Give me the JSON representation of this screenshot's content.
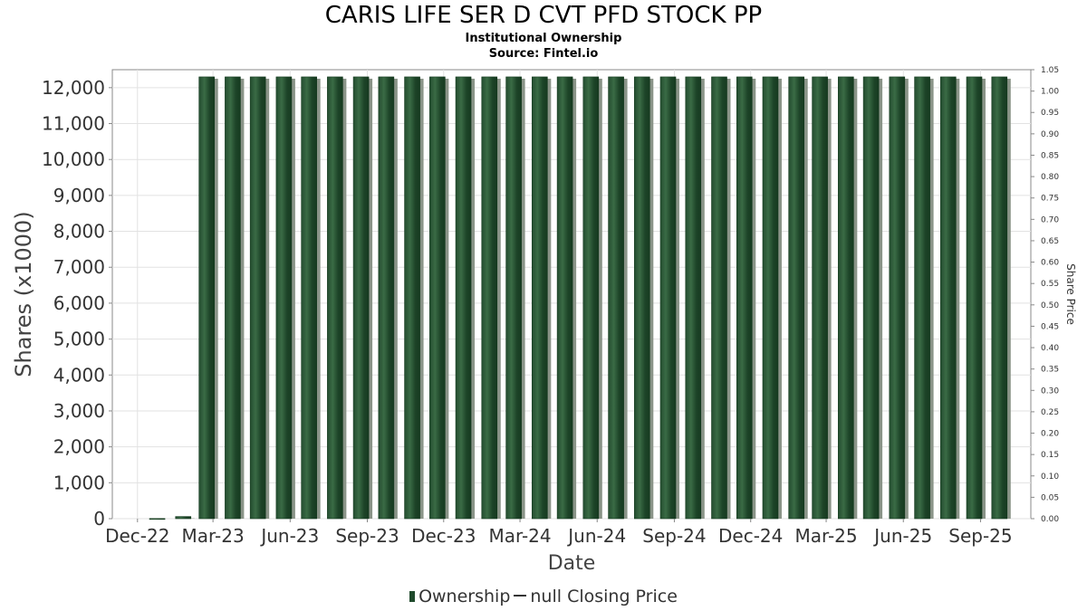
{
  "chart_data": {
    "type": "bar",
    "title": "CARIS LIFE SER D CVT PFD STOCK PP",
    "subtitle": "Institutional Ownership",
    "source": "Source: Fintel.io",
    "xlabel": "Date",
    "ylabel": "Shares (x1000)",
    "y2label": "Share Price",
    "ylim": [
      0,
      12500
    ],
    "y2lim": [
      0,
      1.05
    ],
    "grid": true,
    "legend_position": "bottom",
    "x_range": [
      "2022-11-01",
      "2025-10-31"
    ],
    "x_tick_labels": [
      "Dec-22",
      "Mar-23",
      "Jun-23",
      "Sep-23",
      "Dec-23",
      "Mar-24",
      "Jun-24",
      "Sep-24",
      "Dec-24",
      "Mar-25",
      "Jun-25",
      "Sep-25"
    ],
    "x_tick_dates": [
      "2022-12-01",
      "2023-03-01",
      "2023-06-01",
      "2023-09-01",
      "2023-12-01",
      "2024-03-01",
      "2024-06-01",
      "2024-09-01",
      "2024-12-01",
      "2025-03-01",
      "2025-06-01",
      "2025-09-01"
    ],
    "y_ticks": [
      0,
      1000,
      2000,
      3000,
      4000,
      5000,
      6000,
      7000,
      8000,
      9000,
      10000,
      11000,
      12000
    ],
    "y_tick_labels": [
      "0",
      "1,000",
      "2,000",
      "3,000",
      "4,000",
      "5,000",
      "6,000",
      "7,000",
      "8,000",
      "9,000",
      "10,000",
      "11,000",
      "12,000"
    ],
    "y2_tick_labels": [
      "0.00",
      "0.05",
      "0.10",
      "0.15",
      "0.20",
      "0.25",
      "0.30",
      "0.35",
      "0.40",
      "0.45",
      "0.50",
      "0.55",
      "0.60",
      "0.65",
      "0.70",
      "0.75",
      "0.80",
      "0.85",
      "0.90",
      "0.95",
      "1.00",
      "1.05"
    ],
    "series": [
      {
        "name": "Ownership",
        "color": "#1f4a2c",
        "x": [
          "2022-12-31",
          "2023-01-31",
          "2023-02-28",
          "2023-03-31",
          "2023-04-30",
          "2023-05-31",
          "2023-06-30",
          "2023-07-31",
          "2023-08-31",
          "2023-09-30",
          "2023-10-31",
          "2023-11-30",
          "2023-12-31",
          "2024-01-31",
          "2024-02-29",
          "2024-03-31",
          "2024-04-30",
          "2024-05-31",
          "2024-06-30",
          "2024-07-31",
          "2024-08-31",
          "2024-09-30",
          "2024-10-31",
          "2024-11-30",
          "2024-12-31",
          "2025-01-31",
          "2025-02-28",
          "2025-03-31",
          "2025-04-30",
          "2025-05-31",
          "2025-06-30",
          "2025-07-31",
          "2025-08-31",
          "2025-09-30"
        ],
        "values": [
          5,
          60,
          12300,
          12300,
          12300,
          12300,
          12300,
          12300,
          12300,
          12300,
          12300,
          12300,
          12300,
          12300,
          12300,
          12300,
          12300,
          12300,
          12300,
          12300,
          12300,
          12300,
          12300,
          12300,
          12300,
          12300,
          12300,
          12300,
          12300,
          12300,
          12300,
          12300,
          12300,
          12300
        ]
      },
      {
        "name": "null Closing Price",
        "color": "#333333",
        "values": []
      }
    ]
  }
}
